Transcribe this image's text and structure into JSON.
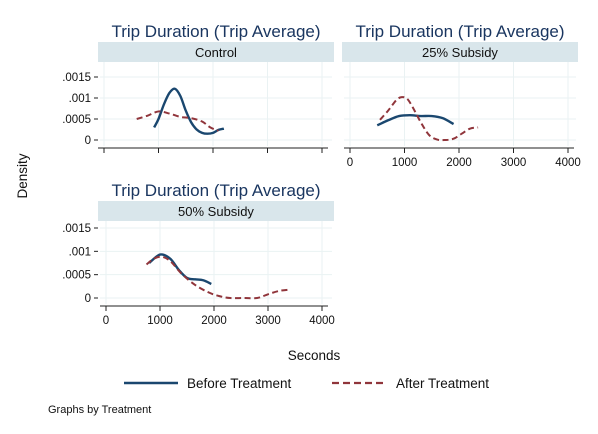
{
  "chart_data": {
    "type": "line",
    "ylabel": "Density",
    "xlabel": "Seconds",
    "note": "Graphs by Treatment",
    "colors": {
      "before": "#1a476f",
      "after": "#90353b",
      "strip": "#d9e6eb",
      "grid": "#eaf2f3"
    },
    "legend": {
      "position": "bottom",
      "entries": [
        {
          "key": "before",
          "label": "Before Treatment"
        },
        {
          "key": "after",
          "label": "After Treatment"
        }
      ]
    },
    "xlim": [
      0,
      4000
    ],
    "ylim": [
      0,
      0.0015
    ],
    "x_ticks": [
      "0",
      "1000",
      "2000",
      "3000",
      "4000"
    ],
    "y_ticks": [
      "0",
      ".0005",
      ".001",
      ".0015"
    ],
    "panels": [
      {
        "title": "Trip Duration (Trip Average)",
        "strip": "Control",
        "show_x_ticks": false,
        "show_y_ticks": true,
        "series": [
          {
            "key": "before",
            "name": "Before Treatment",
            "points": [
              [
                920,
                0.0003
              ],
              [
                1000,
                0.0005
              ],
              [
                1100,
                0.00085
              ],
              [
                1200,
                0.00112
              ],
              [
                1300,
                0.00122
              ],
              [
                1400,
                0.00105
              ],
              [
                1500,
                0.0007
              ],
              [
                1600,
                0.00042
              ],
              [
                1700,
                0.00025
              ],
              [
                1800,
                0.00017
              ],
              [
                1900,
                0.00015
              ],
              [
                2000,
                0.00017
              ],
              [
                2100,
                0.00024
              ],
              [
                2200,
                0.00027
              ]
            ]
          },
          {
            "key": "after",
            "name": "After Treatment",
            "points": [
              [
                600,
                0.0005
              ],
              [
                800,
                0.00058
              ],
              [
                1000,
                0.00068
              ],
              [
                1200,
                0.00063
              ],
              [
                1400,
                0.00055
              ],
              [
                1600,
                0.00052
              ],
              [
                1800,
                0.00044
              ],
              [
                1950,
                0.0003
              ],
              [
                2100,
                0.00022
              ]
            ]
          }
        ]
      },
      {
        "title": "Trip Duration (Trip Average)",
        "strip": "25% Subsidy",
        "show_x_ticks": true,
        "show_y_ticks": false,
        "series": [
          {
            "key": "before",
            "name": "Before Treatment",
            "points": [
              [
                500,
                0.00035
              ],
              [
                700,
                0.00047
              ],
              [
                900,
                0.00057
              ],
              [
                1100,
                0.00059
              ],
              [
                1300,
                0.00057
              ],
              [
                1500,
                0.00057
              ],
              [
                1700,
                0.00052
              ],
              [
                1900,
                0.00038
              ]
            ]
          },
          {
            "key": "after",
            "name": "After Treatment",
            "points": [
              [
                550,
                0.00048
              ],
              [
                700,
                0.0007
              ],
              [
                850,
                0.00095
              ],
              [
                950,
                0.00102
              ],
              [
                1050,
                0.00098
              ],
              [
                1150,
                0.00078
              ],
              [
                1300,
                0.00042
              ],
              [
                1450,
                0.00012
              ],
              [
                1600,
                1e-05
              ],
              [
                1750,
                0.0
              ],
              [
                1900,
                3e-05
              ],
              [
                2050,
                0.00015
              ],
              [
                2200,
                0.00027
              ],
              [
                2350,
                0.0003
              ]
            ]
          }
        ]
      },
      {
        "title": "Trip Duration (Trip Average)",
        "strip": "50% Subsidy",
        "show_x_ticks": true,
        "show_y_ticks": true,
        "series": [
          {
            "key": "before",
            "name": "Before Treatment",
            "points": [
              [
                800,
                0.00075
              ],
              [
                950,
                0.0009
              ],
              [
                1050,
                0.00093
              ],
              [
                1200,
                0.00083
              ],
              [
                1350,
                0.0006
              ],
              [
                1500,
                0.00043
              ],
              [
                1650,
                0.0004
              ],
              [
                1800,
                0.00038
              ],
              [
                1950,
                0.0003
              ]
            ]
          },
          {
            "key": "after",
            "name": "After Treatment",
            "points": [
              [
                750,
                0.00072
              ],
              [
                900,
                0.00085
              ],
              [
                1050,
                0.00088
              ],
              [
                1200,
                0.00078
              ],
              [
                1400,
                0.00052
              ],
              [
                1650,
                0.00028
              ],
              [
                1900,
                0.00012
              ],
              [
                2100,
                4e-05
              ],
              [
                2300,
                0.0
              ],
              [
                2550,
                0.0
              ],
              [
                2800,
                0.0
              ],
              [
                3000,
                8e-05
              ],
              [
                3200,
                0.00015
              ],
              [
                3400,
                0.00018
              ]
            ]
          }
        ]
      }
    ]
  }
}
